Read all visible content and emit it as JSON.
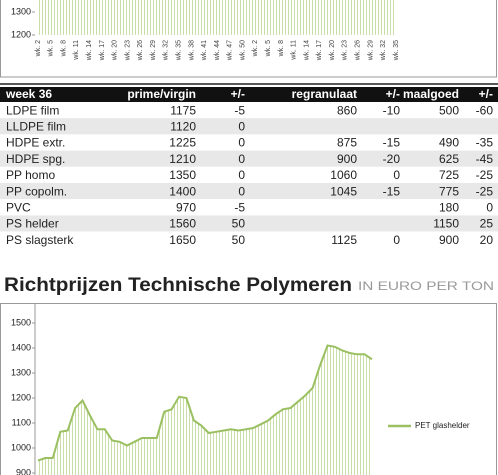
{
  "chart_data": [
    {
      "type": "area",
      "color": "#9bc062",
      "categories": [
        "wk. 2",
        "wk. 5",
        "wk. 8",
        "wk. 11",
        "wk. 14",
        "wk. 17",
        "wk. 20",
        "wk. 23",
        "wk. 26",
        "wk. 29",
        "wk. 32",
        "wk. 35",
        "wk. 38",
        "wk. 41",
        "wk. 44",
        "wk. 47",
        "wk. 50",
        "wk. 2",
        "wk. 5",
        "wk. 8",
        "wk. 11",
        "wk. 14",
        "wk. 17",
        "wk. 20",
        "wk. 23",
        "wk. 26",
        "wk. 29",
        "wk. 32",
        "wk. 35"
      ],
      "values": [
        1450,
        1450,
        1450,
        1450,
        1450,
        1450,
        1450,
        1450,
        1450,
        1450,
        1450,
        1450,
        1450,
        1450,
        1450,
        1450,
        1450,
        1450,
        1450,
        1450,
        1450,
        1450,
        1450,
        1450,
        1450,
        1450,
        1450,
        1450,
        1450
      ],
      "ylim": [
        1200,
        1350
      ],
      "yticks": [
        1200,
        1300
      ],
      "grid": false
    },
    {
      "type": "line",
      "legend": "right",
      "series": [
        {
          "name": "PET glashelder",
          "color": "#9bc062",
          "values": [
            950,
            960,
            960,
            1065,
            1070,
            1160,
            1190,
            1130,
            1075,
            1075,
            1030,
            1025,
            1010,
            1025,
            1040,
            1040,
            1040,
            1145,
            1155,
            1205,
            1200,
            1110,
            1090,
            1060,
            1065,
            1070,
            1075,
            1070,
            1075,
            1080,
            1095,
            1110,
            1135,
            1155,
            1160,
            1185,
            1210,
            1240,
            1330,
            1410,
            1405,
            1390,
            1380,
            1375,
            1375,
            1355
          ]
        }
      ],
      "ylim": [
        900,
        1600
      ],
      "yticks": [
        900,
        1000,
        1100,
        1200,
        1300,
        1400,
        1500
      ],
      "grid": false
    }
  ],
  "table": {
    "header": [
      "week 36",
      "prime/virgin",
      "+/-",
      "regranulaat",
      "+/-",
      "maalgoed",
      "+/-"
    ],
    "rows": [
      [
        "LDPE film",
        1175,
        -5,
        860,
        -10,
        500,
        -60
      ],
      [
        "LLDPE film",
        1120,
        0,
        null,
        null,
        null,
        null
      ],
      [
        "HDPE extr.",
        1225,
        0,
        875,
        -15,
        490,
        -35
      ],
      [
        "HDPE spg.",
        1210,
        0,
        900,
        -20,
        625,
        -45
      ],
      [
        "PP homo",
        1350,
        0,
        1060,
        0,
        725,
        -25
      ],
      [
        "PP copolm.",
        1400,
        0,
        1045,
        -15,
        775,
        -25
      ],
      [
        "PVC",
        970,
        -5,
        null,
        null,
        180,
        0
      ],
      [
        "PS helder",
        1560,
        50,
        null,
        null,
        1150,
        25
      ],
      [
        "PS slagsterk",
        1650,
        50,
        1125,
        0,
        900,
        20
      ]
    ]
  },
  "heading": {
    "title": "Richtprijzen Technische Polymeren",
    "subtitle": "IN EURO PER TON"
  }
}
